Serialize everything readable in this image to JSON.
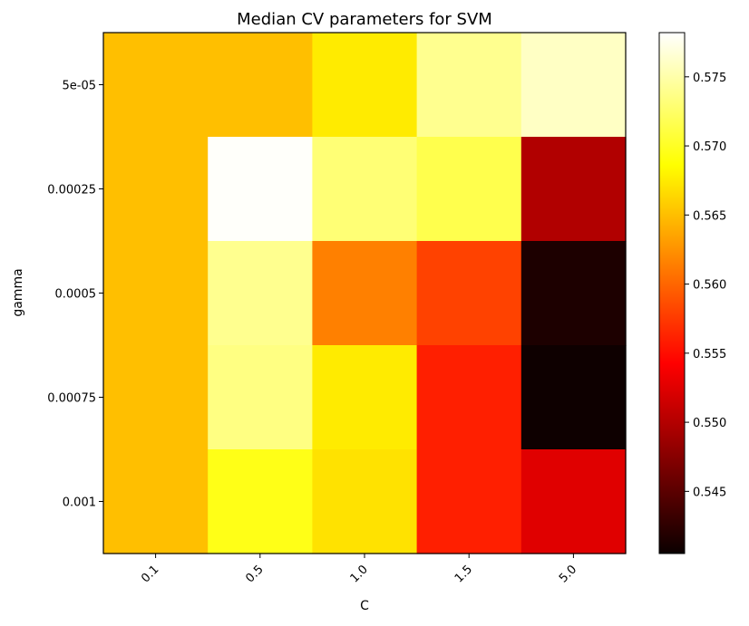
{
  "chart_data": {
    "type": "heatmap",
    "title": "Median CV parameters for SVM",
    "xlabel": "C",
    "ylabel": "gamma",
    "x_categories": [
      "0.1",
      "0.5",
      "1.0",
      "1.5",
      "5.0"
    ],
    "y_categories": [
      "5e-05",
      "0.00025",
      "0.0005",
      "0.00075",
      "0.001"
    ],
    "values": [
      [
        0.565,
        0.565,
        0.5675,
        0.574,
        0.576
      ],
      [
        0.565,
        0.578,
        0.573,
        0.5715,
        0.5495
      ],
      [
        0.565,
        0.574,
        0.5615,
        0.558,
        0.5415
      ],
      [
        0.565,
        0.5735,
        0.5675,
        0.556,
        0.5407
      ],
      [
        0.565,
        0.5695,
        0.567,
        0.556,
        0.552
      ]
    ],
    "colormap": "hot",
    "colorbar": {
      "range": [
        0.5405,
        0.5782
      ],
      "ticks": [
        0.545,
        0.55,
        0.555,
        0.56,
        0.565,
        0.57,
        0.575
      ],
      "tick_labels": [
        "0.545",
        "0.550",
        "0.555",
        "0.560",
        "0.565",
        "0.570",
        "0.575"
      ]
    },
    "grid": false
  }
}
